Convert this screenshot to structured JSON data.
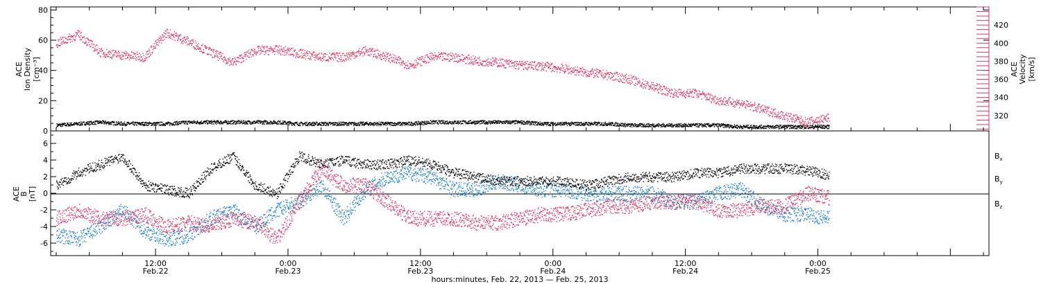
{
  "colors": {
    "black": "#000000",
    "pink": "#e8325f",
    "blue": "#1a82d8"
  },
  "xaxis": {
    "title": "hours:minutes, Feb. 22, 2013 — Feb. 25, 2013",
    "range_hours": [
      2.5,
      87.5
    ],
    "ticks": [
      {
        "h": 12,
        "time": "12:00",
        "date": "Feb.22"
      },
      {
        "h": 24,
        "time": "0:00",
        "date": "Feb.23"
      },
      {
        "h": 36,
        "time": "12:00",
        "date": "Feb.23"
      },
      {
        "h": 48,
        "time": "0:00",
        "date": "Feb.24"
      },
      {
        "h": 60,
        "time": "12:00",
        "date": "Feb.24"
      },
      {
        "h": 72,
        "time": "0:00",
        "date": "Feb.25"
      }
    ]
  },
  "top_panel": {
    "left_label": [
      "ACE",
      "Ion Density",
      "[cm⁻³]"
    ],
    "right_label": [
      "ACE",
      "Velocity",
      "[km/s]"
    ],
    "left_ticks": [
      "0",
      "20",
      "40",
      "60",
      "80"
    ],
    "right_ticks": [
      "320",
      "340",
      "360",
      "380",
      "400",
      "420"
    ]
  },
  "bottom_panel": {
    "left_label": [
      "ACE",
      "B",
      "[nT]"
    ],
    "ticks": [
      "-6",
      "-4",
      "-2",
      "0",
      "2",
      "4",
      "6"
    ],
    "legend": [
      {
        "text": "Bx",
        "color": "#000000"
      },
      {
        "text": "By",
        "color": "#1a82d8"
      },
      {
        "text": "Bz",
        "color": "#e8325f"
      }
    ]
  },
  "chart_data": [
    {
      "type": "scatter",
      "title": "",
      "xlabel": "hours:minutes, Feb. 22, 2013 — Feb. 25, 2013",
      "ylabel": "ACE Ion Density [cm⁻³]",
      "y2label": "ACE Velocity [km/s]",
      "ylim": [
        0,
        82
      ],
      "y2lim": [
        303,
        440
      ],
      "x": [
        3,
        5,
        7,
        9,
        11,
        13,
        15,
        17,
        19,
        21,
        23,
        25,
        27,
        29,
        31,
        33,
        35,
        37,
        39,
        41,
        43,
        45,
        47,
        49,
        51,
        53,
        55,
        57,
        59,
        61,
        63,
        65,
        67,
        69,
        71,
        73
      ],
      "series": [
        {
          "name": "Ion Density",
          "axis": "left",
          "values": [
            4,
            5,
            6,
            5,
            5,
            5,
            6,
            6,
            6,
            6,
            6,
            5,
            5,
            5,
            5,
            5,
            5,
            6,
            6,
            6,
            6,
            6,
            5,
            5,
            5,
            5,
            4,
            4,
            4,
            4,
            4,
            3,
            3,
            3,
            3,
            3
          ]
        },
        {
          "name": "Velocity",
          "axis": "right",
          "values": [
            400,
            410,
            390,
            387,
            385,
            412,
            402,
            390,
            379,
            392,
            393,
            389,
            385,
            385,
            392,
            385,
            376,
            385,
            385,
            381,
            379,
            376,
            375,
            372,
            368,
            365,
            360,
            352,
            345,
            345,
            337,
            334,
            327,
            320,
            313,
            318
          ]
        }
      ]
    },
    {
      "type": "scatter",
      "title": "",
      "xlabel": "hours:minutes, Feb. 22, 2013 — Feb. 25, 2013",
      "ylabel": "ACE B [nT]",
      "ylim": [
        -7.5,
        7.5
      ],
      "x": [
        3,
        5,
        7,
        9,
        11,
        13,
        15,
        17,
        19,
        21,
        23,
        25,
        27,
        29,
        31,
        33,
        35,
        37,
        39,
        41,
        43,
        45,
        47,
        49,
        51,
        53,
        55,
        57,
        59,
        61,
        63,
        65,
        67,
        69,
        71,
        73
      ],
      "series": [
        {
          "name": "Bx",
          "values": [
            1.0,
            2.5,
            3.5,
            4.5,
            1.0,
            0.5,
            0.0,
            3.0,
            4.5,
            1.0,
            0.0,
            4.5,
            3.5,
            4.0,
            3.5,
            3.5,
            4.0,
            3.5,
            2.5,
            2.0,
            1.5,
            1.5,
            1.5,
            1.5,
            1.0,
            1.5,
            2.0,
            2.0,
            2.0,
            2.5,
            2.5,
            3.0,
            3.0,
            3.0,
            2.8,
            2.2
          ]
        },
        {
          "name": "By",
          "values": [
            -5.0,
            -5.5,
            -4.0,
            -2.0,
            -4.5,
            -5.5,
            -5.0,
            -3.0,
            -2.0,
            -4.0,
            -2.0,
            -1.0,
            1.0,
            -3.0,
            0.5,
            2.0,
            2.5,
            2.0,
            0.5,
            0.5,
            1.5,
            1.0,
            0.5,
            0.5,
            0.0,
            0.0,
            0.0,
            0.0,
            -1.0,
            -1.0,
            0.0,
            0.5,
            -1.5,
            -2.5,
            -2.5,
            -3.0
          ]
        },
        {
          "name": "Bz",
          "values": [
            -3.0,
            -2.0,
            -3.0,
            -3.0,
            -2.5,
            -4.0,
            -3.5,
            -4.0,
            -3.0,
            -3.5,
            -5.5,
            -1.0,
            3.0,
            1.0,
            1.0,
            -1.0,
            -3.0,
            -3.0,
            -3.0,
            -3.5,
            -3.5,
            -3.0,
            -2.5,
            -2.5,
            -2.0,
            -1.5,
            -1.5,
            -1.0,
            -1.0,
            -1.0,
            -2.0,
            -2.0,
            -1.5,
            -1.5,
            0.0,
            -0.5
          ]
        }
      ]
    }
  ]
}
